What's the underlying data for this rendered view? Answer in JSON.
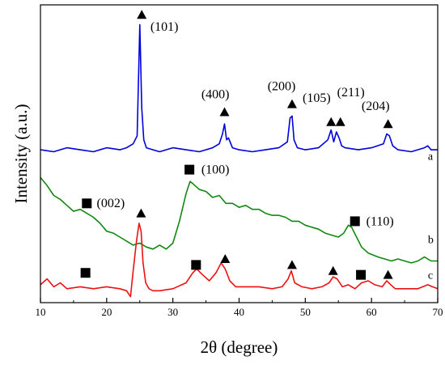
{
  "chart_data": {
    "type": "line",
    "title": "",
    "xlabel": "2θ (degree)",
    "ylabel": "Intensity (a.u.)",
    "xlim": [
      10,
      70
    ],
    "x_ticks": [
      "10",
      "20",
      "30",
      "40",
      "50",
      "60",
      "70"
    ],
    "y_ticks_shown": false,
    "grid": false,
    "legend": "none",
    "series": [
      {
        "name": "a",
        "color": "#0000dd",
        "x": [
          10,
          12,
          14,
          16,
          18,
          20,
          22,
          23,
          24,
          24.6,
          25.0,
          25.3,
          25.6,
          26,
          27,
          28,
          30,
          32,
          34,
          36,
          37,
          37.5,
          37.8,
          38.1,
          38.4,
          39,
          40,
          42,
          44,
          46,
          47.3,
          47.7,
          48.0,
          48.3,
          48.8,
          50,
          52,
          53.4,
          53.9,
          54.3,
          54.7,
          55.1,
          55.5,
          56,
          58,
          60,
          61.8,
          62.3,
          62.7,
          63.2,
          64,
          66,
          68,
          68.5,
          69,
          70
        ],
        "y": [
          0.71,
          0.7,
          0.72,
          0.71,
          0.7,
          0.72,
          0.71,
          0.72,
          0.74,
          0.78,
          1.34,
          0.92,
          0.76,
          0.72,
          0.71,
          0.7,
          0.72,
          0.71,
          0.7,
          0.72,
          0.74,
          0.79,
          0.84,
          0.76,
          0.77,
          0.72,
          0.71,
          0.7,
          0.71,
          0.72,
          0.75,
          0.87,
          0.88,
          0.76,
          0.72,
          0.71,
          0.72,
          0.76,
          0.81,
          0.75,
          0.8,
          0.77,
          0.73,
          0.72,
          0.71,
          0.72,
          0.74,
          0.79,
          0.78,
          0.73,
          0.71,
          0.7,
          0.72,
          0.73,
          0.71,
          0.71
        ]
      },
      {
        "name": "b",
        "color": "#118811",
        "x": [
          10,
          11,
          12,
          13,
          14,
          15,
          16,
          17,
          18,
          19,
          20,
          21,
          22,
          23,
          24,
          25,
          26,
          27,
          28,
          29,
          30,
          31,
          32,
          32.6,
          33,
          34,
          35,
          36,
          37,
          38,
          39,
          40,
          41,
          42,
          43,
          44,
          45,
          46,
          47,
          48,
          49,
          50,
          51,
          52,
          53,
          54,
          55,
          55.8,
          56.5,
          57,
          57.6,
          58.5,
          59.5,
          61,
          62,
          63,
          64,
          65,
          66,
          67,
          68,
          69,
          70
        ],
        "y": [
          0.57,
          0.53,
          0.48,
          0.46,
          0.43,
          0.4,
          0.41,
          0.39,
          0.37,
          0.34,
          0.3,
          0.29,
          0.27,
          0.25,
          0.23,
          0.24,
          0.22,
          0.21,
          0.23,
          0.21,
          0.24,
          0.35,
          0.49,
          0.55,
          0.54,
          0.51,
          0.5,
          0.47,
          0.48,
          0.44,
          0.44,
          0.42,
          0.43,
          0.41,
          0.41,
          0.39,
          0.38,
          0.38,
          0.37,
          0.35,
          0.35,
          0.33,
          0.32,
          0.31,
          0.29,
          0.28,
          0.27,
          0.29,
          0.33,
          0.32,
          0.28,
          0.22,
          0.19,
          0.17,
          0.16,
          0.15,
          0.16,
          0.15,
          0.14,
          0.15,
          0.17,
          0.15,
          0.15
        ]
      },
      {
        "name": "c",
        "color": "#ee1111",
        "x": [
          10,
          11,
          12,
          13,
          14,
          16,
          18,
          20,
          22,
          23,
          23.6,
          24.0,
          24.5,
          24.9,
          25.2,
          25.5,
          25.9,
          26.4,
          27,
          28,
          30,
          32,
          33,
          33.6,
          34.5,
          35.5,
          36.5,
          37.3,
          37.9,
          38.6,
          39.5,
          41,
          43,
          45,
          46.5,
          47.4,
          47.9,
          48.4,
          49.5,
          51,
          52.5,
          53.6,
          54.2,
          54.8,
          55.6,
          56.5,
          57.5,
          58.5,
          59.5,
          60.5,
          61.6,
          62.3,
          62.9,
          63.6,
          65,
          67,
          68.5,
          69.2,
          70
        ],
        "y": [
          0.03,
          0.06,
          0.02,
          0.04,
          0.01,
          0.02,
          0.01,
          0.02,
          0.01,
          0.0,
          -0.03,
          0.1,
          0.25,
          0.34,
          0.3,
          0.14,
          0.04,
          0.01,
          0.0,
          0.0,
          0.01,
          0.04,
          0.09,
          0.11,
          0.08,
          0.05,
          0.09,
          0.14,
          0.11,
          0.05,
          0.02,
          0.02,
          0.02,
          0.01,
          0.02,
          0.06,
          0.1,
          0.04,
          0.02,
          0.01,
          0.02,
          0.04,
          0.07,
          0.06,
          0.02,
          0.03,
          0.01,
          0.04,
          0.05,
          0.03,
          0.02,
          0.05,
          0.03,
          0.01,
          0.01,
          0.01,
          0.03,
          0.02,
          0.01
        ]
      }
    ],
    "series_tags": [
      {
        "text": "a",
        "x": 69.5,
        "y": 0.66
      },
      {
        "text": "b",
        "x": 69.5,
        "y": 0.24
      },
      {
        "text": "c",
        "x": 69.5,
        "y": 0.06
      }
    ],
    "annotations": [
      {
        "marker": "triangle",
        "x": 25.3,
        "y": 1.39,
        "label": "(101)",
        "label_x": 26.6,
        "label_y": 1.31
      },
      {
        "marker": "triangle",
        "x": 37.8,
        "y": 0.9,
        "label": "(400)",
        "label_x": 34.3,
        "label_y": 0.97
      },
      {
        "marker": "triangle",
        "x": 48.0,
        "y": 0.94,
        "label": "(200)",
        "label_x": 44.3,
        "label_y": 1.01
      },
      {
        "marker": null,
        "x": null,
        "y": null,
        "label": "(105)",
        "label_x": 49.6,
        "label_y": 0.95
      },
      {
        "marker": "triangle",
        "x": 53.9,
        "y": 0.85,
        "label": null,
        "label_x": null,
        "label_y": null
      },
      {
        "marker": "triangle",
        "x": 55.3,
        "y": 0.85,
        "label": "(211)",
        "label_x": 54.8,
        "label_y": 0.98
      },
      {
        "marker": "triangle",
        "x": 62.5,
        "y": 0.84,
        "label": "(204)",
        "label_x": 58.5,
        "label_y": 0.91
      },
      {
        "marker": "square",
        "x": 17.0,
        "y": 0.44,
        "label": "(002)",
        "label_x": 18.5,
        "label_y": 0.42
      },
      {
        "marker": "square",
        "x": 32.5,
        "y": 0.61,
        "label": "(100)",
        "label_x": 34.3,
        "label_y": 0.59
      },
      {
        "marker": "square",
        "x": 57.5,
        "y": 0.35,
        "label": "(110)",
        "label_x": 59.2,
        "label_y": 0.33
      },
      {
        "marker": "triangle",
        "x": 25.2,
        "y": 0.39,
        "label": null,
        "label_x": null,
        "label_y": null
      },
      {
        "marker": "square",
        "x": 16.8,
        "y": 0.09,
        "label": null,
        "label_x": null,
        "label_y": null
      },
      {
        "marker": "square",
        "x": 33.5,
        "y": 0.13,
        "label": null,
        "label_x": null,
        "label_y": null
      },
      {
        "marker": "triangle",
        "x": 37.9,
        "y": 0.16,
        "label": null,
        "label_x": null,
        "label_y": null
      },
      {
        "marker": "triangle",
        "x": 48.0,
        "y": 0.13,
        "label": null,
        "label_x": null,
        "label_y": null
      },
      {
        "marker": "triangle",
        "x": 54.2,
        "y": 0.1,
        "label": null,
        "label_x": null,
        "label_y": null
      },
      {
        "marker": "square",
        "x": 58.4,
        "y": 0.08,
        "label": null,
        "label_x": null,
        "label_y": null
      },
      {
        "marker": "triangle",
        "x": 62.5,
        "y": 0.08,
        "label": null,
        "label_x": null,
        "label_y": null
      }
    ]
  }
}
